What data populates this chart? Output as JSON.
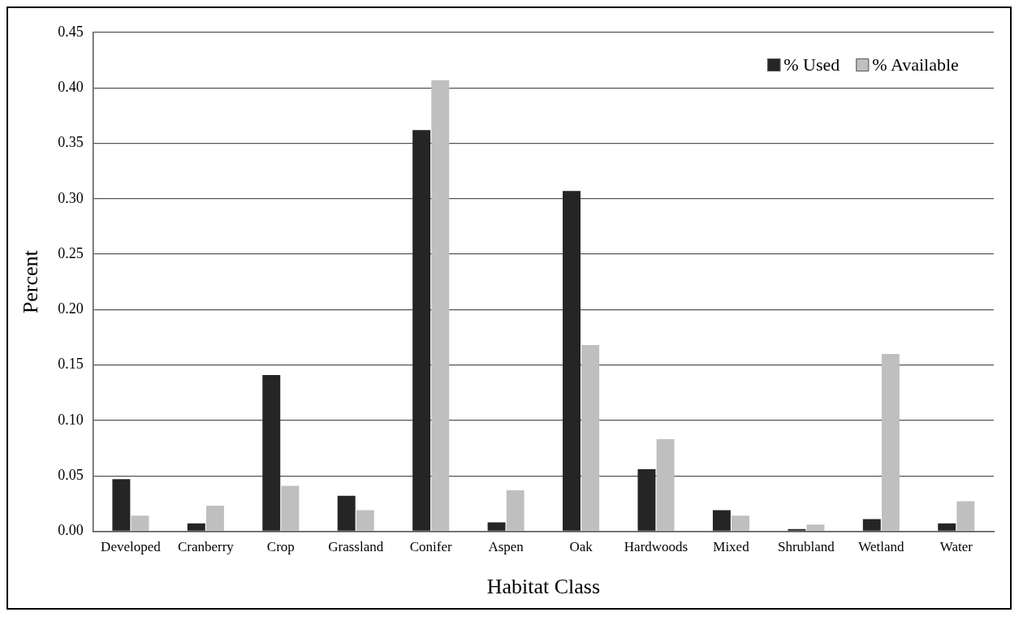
{
  "chart_data": {
    "type": "bar",
    "xlabel": "Habitat Class",
    "ylabel": "Percent",
    "categories": [
      "Developed",
      "Cranberry",
      "Crop",
      "Grassland",
      "Conifer",
      "Aspen",
      "Oak",
      "Hardwoods",
      "Mixed",
      "Shrubland",
      "Wetland",
      "Water"
    ],
    "series": [
      {
        "name": "% Used",
        "color": "#252525",
        "values": [
          0.047,
          0.007,
          0.141,
          0.032,
          0.362,
          0.008,
          0.307,
          0.056,
          0.019,
          0.002,
          0.011,
          0.007
        ]
      },
      {
        "name": "% Available",
        "color": "#bfbfbf",
        "values": [
          0.014,
          0.023,
          0.041,
          0.019,
          0.407,
          0.037,
          0.168,
          0.083,
          0.014,
          0.006,
          0.16,
          0.027
        ]
      }
    ],
    "ylim": [
      0,
      0.45
    ],
    "yticks": [
      {
        "value": 0,
        "label": "0.00"
      },
      0.05,
      {
        "value": 0.1,
        "label": "0.10"
      },
      0.15,
      {
        "value": 0.2,
        "label": "0.20"
      },
      0.25,
      {
        "value": 0.3,
        "label": "0.30"
      },
      0.35,
      {
        "value": 0.4,
        "label": "0.40"
      },
      0.45
    ],
    "grid": "y",
    "legend": "top right"
  }
}
